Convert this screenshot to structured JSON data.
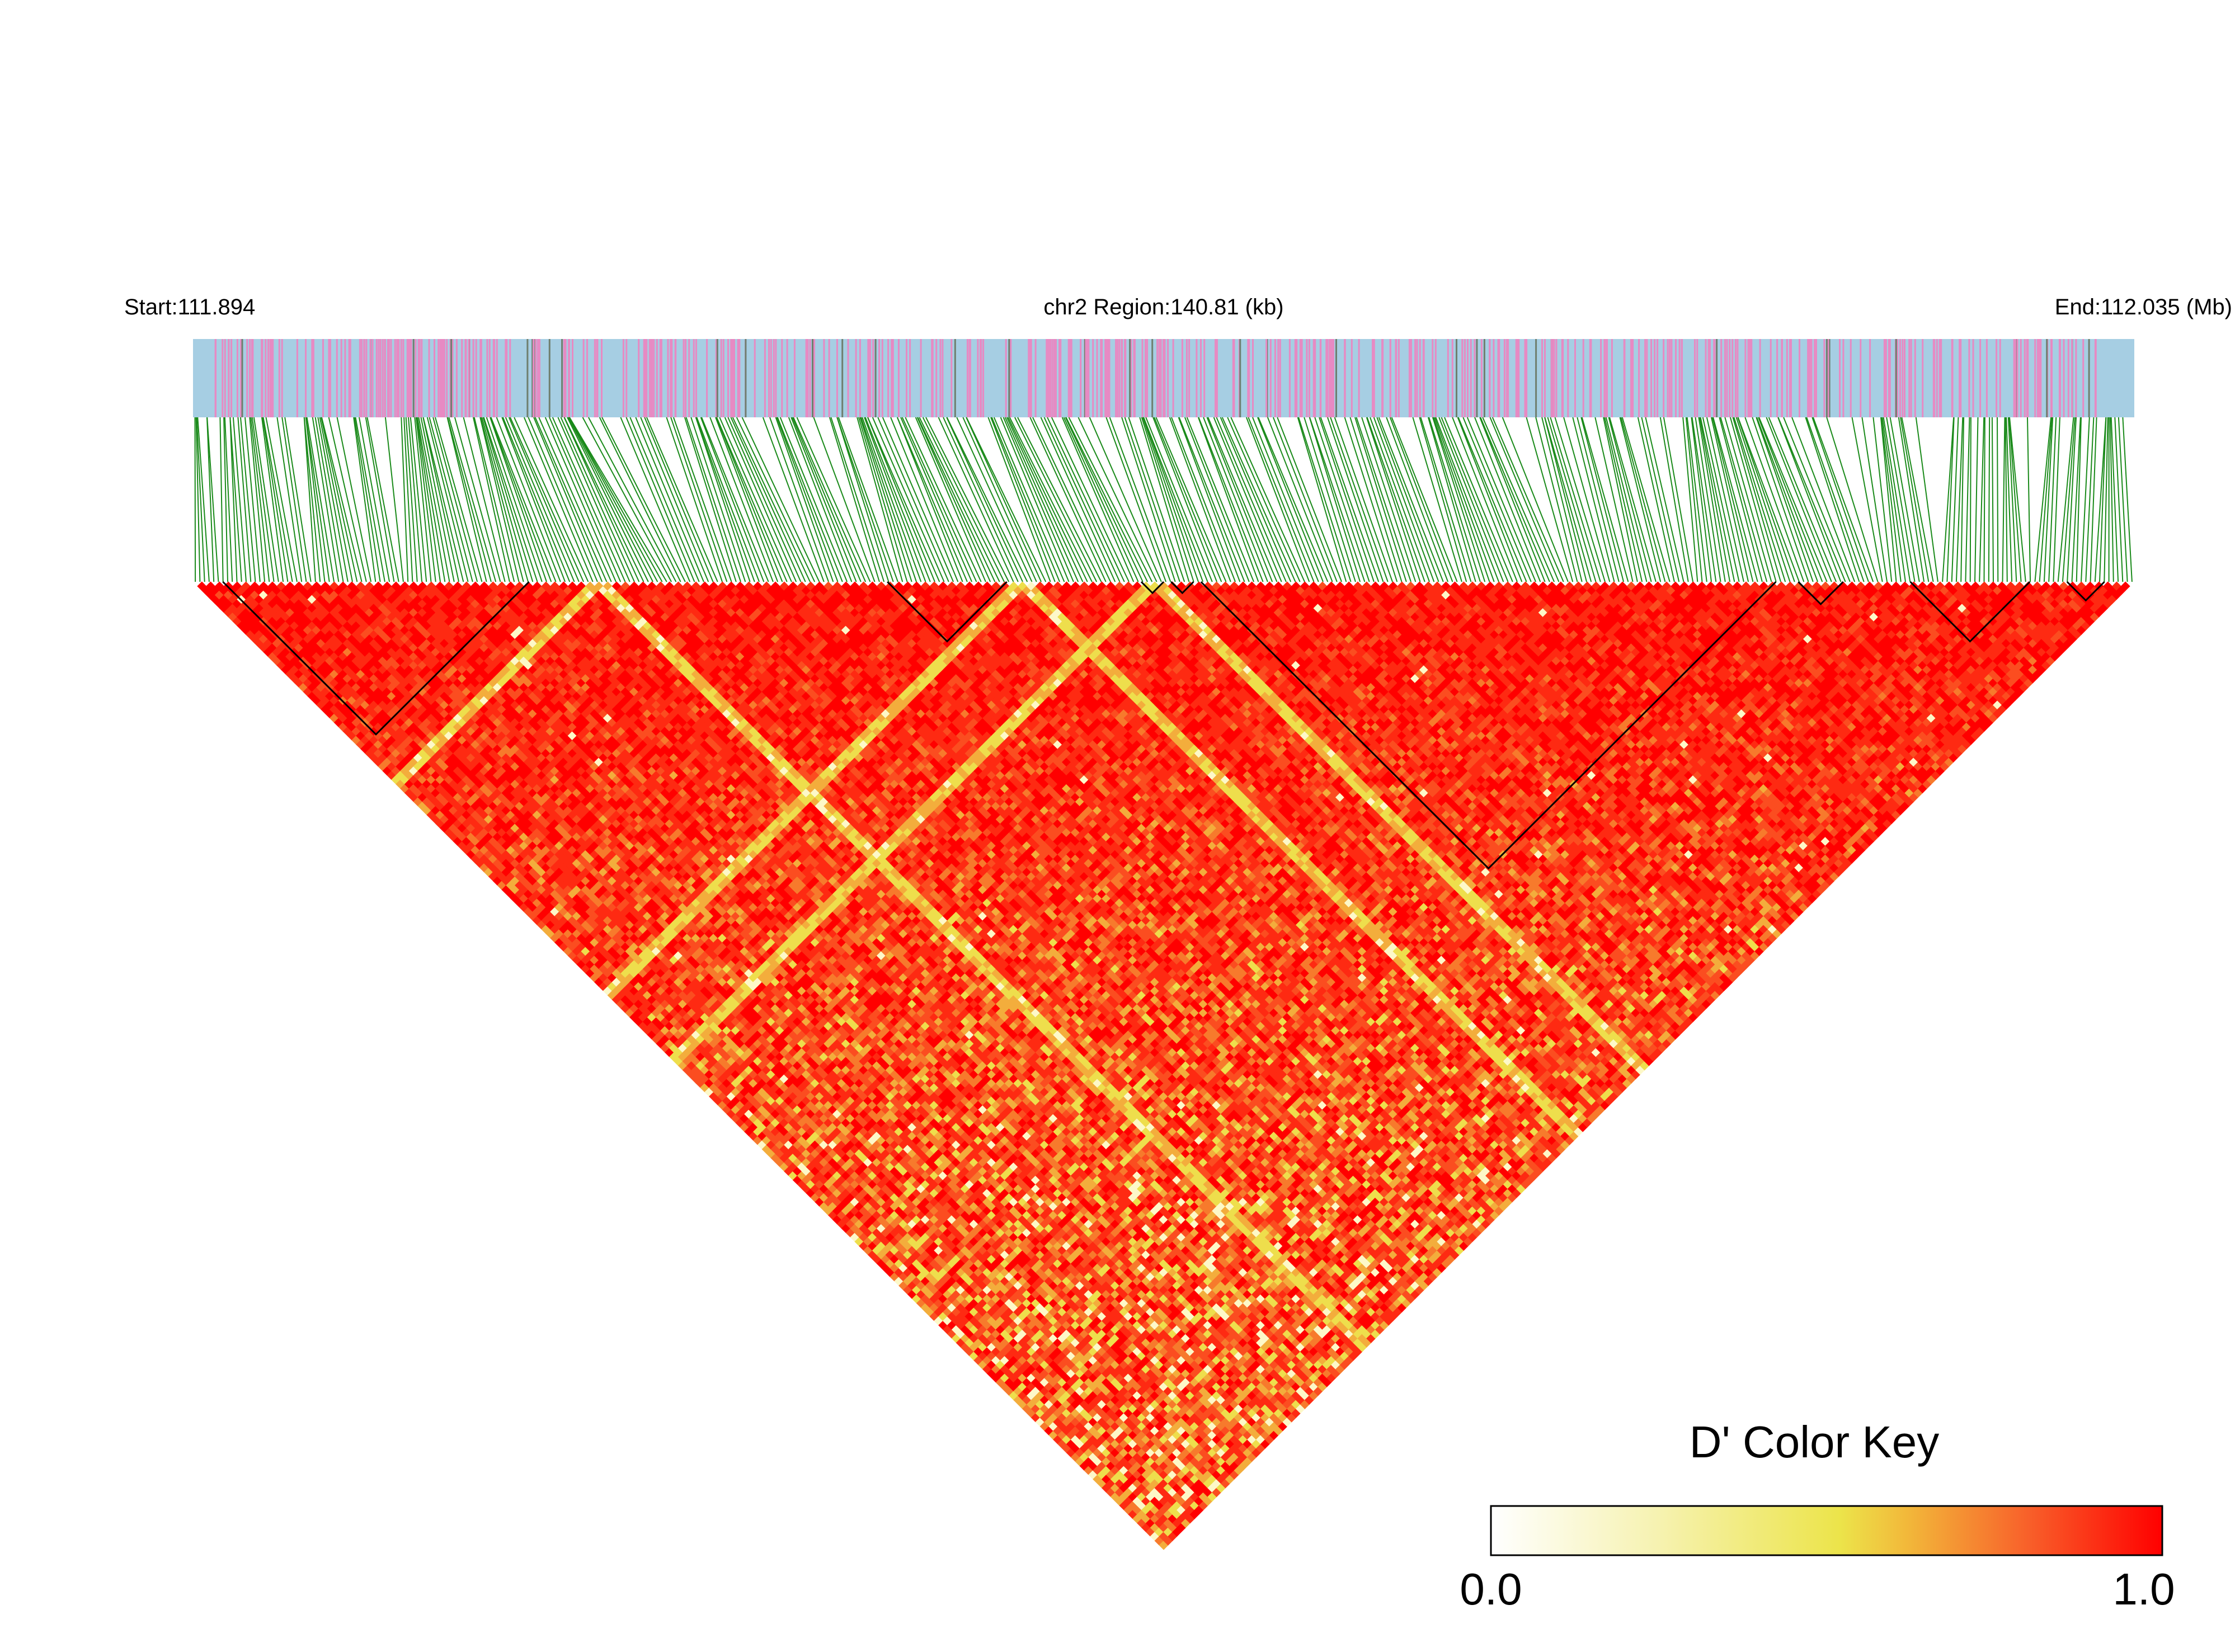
{
  "chart_data": {
    "type": "heatmap",
    "title": "",
    "header": {
      "start_label": "Start:111.894",
      "region_label": "chr2 Region:140.81 (kb)",
      "end_label": "End:112.035 (Mb)"
    },
    "chromosome": "chr2",
    "region": {
      "start_mb": 111.894,
      "end_mb": 112.035,
      "length_kb": 140.81
    },
    "snp_track": {
      "background_color": "#a6cee3",
      "marker_color": "#e78ac3",
      "connector_color": "#1a8a1a"
    },
    "heatmap": {
      "statistic": "D'",
      "value_range": [
        0.0,
        1.0
      ],
      "dominant_value": 1.0,
      "haplotype_blocks_count": 8,
      "block_outline_color": "#000000"
    },
    "color_key": {
      "title": "D' Color Key",
      "min_label": "0.0",
      "max_label": "1.0",
      "min": 0.0,
      "max": 1.0,
      "colors": [
        "#ffffff",
        "#f3ea55",
        "#ff0000"
      ]
    }
  }
}
